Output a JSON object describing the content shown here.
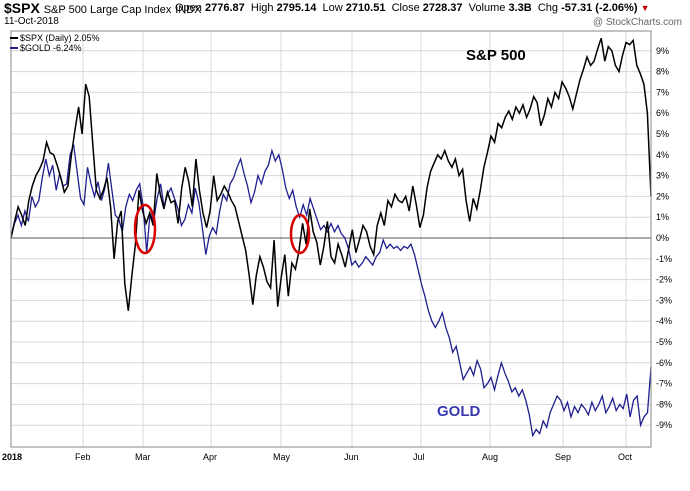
{
  "header": {
    "symbol": "$SPX",
    "index_name": "S&P 500 Large Cap Index",
    "exchange": "INDX",
    "date": "11-Oct-2018",
    "copyright": "@ StockCharts.com",
    "open_label": "Open",
    "open": "2776.87",
    "high_label": "High",
    "high": "2795.14",
    "low_label": "Low",
    "low": "2710.51",
    "close_label": "Close",
    "close": "2728.37",
    "volume_label": "Volume",
    "volume": "3.3B",
    "chg_label": "Chg",
    "chg": "-57.31 (-2.06%)"
  },
  "legend": {
    "spx": "$SPX (Daily) 2.05%",
    "gold": "$GOLD -6.24%"
  },
  "annotations": {
    "spx_label": "S&P 500",
    "gold_label": "GOLD"
  },
  "colors": {
    "spx": "#000000",
    "gold": "#1f1f8f",
    "circle": "#d90000",
    "grid": "#d8d8d8",
    "zero_line": "#555555"
  },
  "chart_data": {
    "type": "line",
    "ylabel": "%",
    "ylim": [
      -10,
      10
    ],
    "y_ticks": [
      "9%",
      "8%",
      "7%",
      "6%",
      "5%",
      "4%",
      "3%",
      "2%",
      "1%",
      "0%",
      "-1%",
      "-2%",
      "-3%",
      "-4%",
      "-5%",
      "-6%",
      "-7%",
      "-8%",
      "-9%"
    ],
    "x_ticks": [
      "2018",
      "Feb",
      "Mar",
      "Apr",
      "May",
      "Jun",
      "Jul",
      "Aug",
      "Sep",
      "Oct"
    ],
    "grid": true,
    "series": [
      {
        "name": "$SPX (Daily) 2.05%",
        "values": [
          0,
          0.8,
          1.5,
          1.1,
          0.6,
          1.8,
          2.5,
          3.0,
          3.3,
          3.7,
          4.6,
          4.1,
          4.0,
          3.5,
          2.9,
          2.2,
          2.5,
          4.0,
          5.2,
          6.3,
          5.0,
          7.4,
          6.8,
          4.5,
          2.3,
          1.9,
          2.3,
          2.9,
          1.5,
          -1.0,
          0.8,
          1.3,
          -2.2,
          -3.5,
          -1.8,
          -0.3,
          2.3,
          1.3,
          0.7,
          1.2,
          0.6,
          3.1,
          2.1,
          1.4,
          2.2,
          1.7,
          1.8,
          0.7,
          2.4,
          3.4,
          2.7,
          1.5,
          3.8,
          2.3,
          1.2,
          0.5,
          1.3,
          3.0,
          1.8,
          2.1,
          2.5,
          2.2,
          1.8,
          1.5,
          0.8,
          0.1,
          -0.6,
          -1.8,
          -3.2,
          -1.8,
          -0.9,
          -1.4,
          -2.1,
          -2.4,
          -0.1,
          -3.3,
          -1.9,
          -0.8,
          -2.8,
          -1.2,
          -1.5,
          -0.6,
          0.7,
          -0.3,
          1.4,
          0.3,
          -0.2,
          -1.3,
          -0.4,
          0.8,
          -0.9,
          -1.2,
          -0.3,
          -0.8,
          -1.4,
          -0.5,
          0.4,
          -0.7,
          -0.1,
          0.6,
          0.3,
          -0.4,
          -0.8,
          0.6,
          1.2,
          0.6,
          1.8,
          1.5,
          2.1,
          1.8,
          1.7,
          2.0,
          1.3,
          2.5,
          1.6,
          0.5,
          1.1,
          2.4,
          3.2,
          3.6,
          4.0,
          3.8,
          4.2,
          3.7,
          3.4,
          3.8,
          3.0,
          3.3,
          1.8,
          0.8,
          1.9,
          1.4,
          2.3,
          3.4,
          4.1,
          4.9,
          4.6,
          5.5,
          5.3,
          5.8,
          6.1,
          5.7,
          6.3,
          6.0,
          6.4,
          5.8,
          6.2,
          6.8,
          6.5,
          5.4,
          5.9,
          6.7,
          6.3,
          7.0,
          6.7,
          7.5,
          7.2,
          6.8,
          6.2,
          6.9,
          7.6,
          8.1,
          8.7,
          8.3,
          8.5,
          9.1,
          9.6,
          8.5,
          9.2,
          9.0,
          8.3,
          8.0,
          8.8,
          9.4,
          9.3,
          9.5,
          8.3,
          7.9,
          7.4,
          6.0,
          2.0
        ],
        "color": "#000000"
      },
      {
        "name": "$GOLD -6.24%",
        "values": [
          0,
          0.7,
          1.1,
          0.6,
          1.3,
          0.8,
          2.0,
          1.5,
          1.8,
          2.9,
          3.8,
          3.0,
          3.5,
          2.3,
          3.1,
          2.5,
          2.6,
          4.0,
          4.5,
          3.2,
          1.9,
          1.6,
          3.4,
          2.6,
          2.0,
          2.7,
          1.8,
          2.4,
          3.6,
          2.3,
          1.1,
          0.9,
          0.3,
          1.5,
          2.1,
          1.8,
          2.3,
          2.6,
          1.5,
          -0.7,
          1.2,
          0.8,
          1.9,
          2.6,
          1.5,
          2.1,
          2.4,
          1.9,
          1.4,
          0.6,
          0.9,
          1.6,
          1.2,
          2.4,
          1.7,
          0.5,
          -0.8,
          0.1,
          0.5,
          0.2,
          1.3,
          2.1,
          1.8,
          2.6,
          2.9,
          3.4,
          3.8,
          3.1,
          2.5,
          1.7,
          2.2,
          3.0,
          2.6,
          3.2,
          3.5,
          4.2,
          3.7,
          4.0,
          3.3,
          2.4,
          1.9,
          2.3,
          1.5,
          1.0,
          1.6,
          1.1,
          1.9,
          1.4,
          0.9,
          0.4,
          0.6,
          0.3,
          0.7,
          0.3,
          0.6,
          0.2,
          0.0,
          -0.5,
          -1.3,
          -1.1,
          -1.4,
          -1.2,
          -0.9,
          -1.1,
          -1.3,
          -0.9,
          -0.7,
          -0.1,
          -0.5,
          -0.3,
          -0.5,
          -0.4,
          -0.6,
          -0.4,
          -0.5,
          -0.3,
          -0.8,
          -1.5,
          -2.2,
          -2.8,
          -3.5,
          -4.0,
          -4.3,
          -4.0,
          -3.6,
          -4.3,
          -4.8,
          -5.5,
          -5.2,
          -6.0,
          -6.8,
          -6.5,
          -6.2,
          -6.6,
          -5.9,
          -6.3,
          -7.2,
          -7.0,
          -6.7,
          -7.3,
          -6.6,
          -6.0,
          -6.5,
          -6.9,
          -7.4,
          -7.2,
          -7.6,
          -7.3,
          -7.8,
          -8.5,
          -9.5,
          -9.2,
          -9.4,
          -8.8,
          -9.1,
          -8.4,
          -8.0,
          -7.6,
          -7.8,
          -8.3,
          -7.9,
          -8.6,
          -8.1,
          -8.4,
          -8.0,
          -8.2,
          -8.5,
          -7.9,
          -8.3,
          -8.0,
          -7.6,
          -8.4,
          -8.1,
          -7.7,
          -8.3,
          -8.0,
          -8.2,
          -7.5,
          -8.6,
          -7.8,
          -7.6,
          -9.0,
          -8.6,
          -8.4,
          -6.2
        ],
        "color": "#1f1f8f"
      }
    ]
  }
}
